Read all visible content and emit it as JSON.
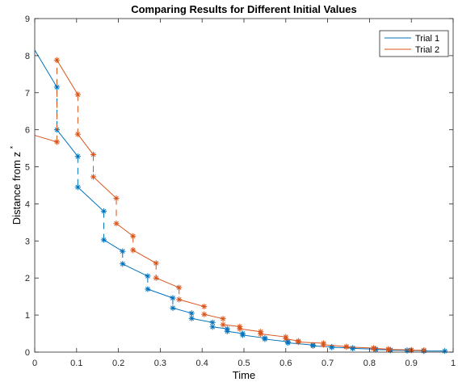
{
  "chart_data": {
    "type": "line",
    "title": "Comparing Results for Different Initial Values",
    "xlabel": "Time",
    "ylabel": "Distance from z",
    "ylabel_superscript": "*",
    "xlim": [
      0,
      1
    ],
    "ylim": [
      0,
      9
    ],
    "xticks": [
      0,
      0.1,
      0.2,
      0.3,
      0.4,
      0.5,
      0.6,
      0.7,
      0.8,
      0.9,
      1
    ],
    "xtick_labels": [
      "0",
      "0.1",
      "0.2",
      "0.3",
      "0.4",
      "0.5",
      "0.6",
      "0.7",
      "0.8",
      "0.9",
      "1"
    ],
    "yticks": [
      0,
      1,
      2,
      3,
      4,
      5,
      6,
      7,
      8,
      9
    ],
    "ytick_labels": [
      "0",
      "1",
      "2",
      "3",
      "4",
      "5",
      "6",
      "7",
      "8",
      "9"
    ],
    "grid": false,
    "legend_position": "top-right",
    "series": [
      {
        "name": "Trial 1",
        "color": "#0072BD",
        "segments": [
          [
            [
              0,
              8.15
            ],
            [
              0.053,
              7.15
            ]
          ],
          [
            [
              0.053,
              6.0
            ],
            [
              0.103,
              5.28
            ]
          ],
          [
            [
              0.103,
              4.45
            ],
            [
              0.165,
              3.8
            ]
          ],
          [
            [
              0.165,
              3.03
            ],
            [
              0.21,
              2.72
            ]
          ],
          [
            [
              0.21,
              2.38
            ],
            [
              0.27,
              2.05
            ]
          ],
          [
            [
              0.27,
              1.7
            ],
            [
              0.33,
              1.46
            ]
          ],
          [
            [
              0.33,
              1.19
            ],
            [
              0.375,
              1.05
            ]
          ],
          [
            [
              0.375,
              0.91
            ],
            [
              0.425,
              0.8
            ]
          ],
          [
            [
              0.425,
              0.68
            ],
            [
              0.46,
              0.63
            ]
          ],
          [
            [
              0.46,
              0.56
            ],
            [
              0.497,
              0.5
            ]
          ],
          [
            [
              0.497,
              0.46
            ],
            [
              0.55,
              0.38
            ]
          ],
          [
            [
              0.55,
              0.35
            ],
            [
              0.605,
              0.28
            ]
          ],
          [
            [
              0.605,
              0.25
            ],
            [
              0.665,
              0.19
            ]
          ],
          [
            [
              0.665,
              0.17
            ],
            [
              0.71,
              0.14
            ]
          ],
          [
            [
              0.71,
              0.13
            ],
            [
              0.76,
              0.11
            ]
          ],
          [
            [
              0.76,
              0.1
            ],
            [
              0.815,
              0.08
            ]
          ],
          [
            [
              0.815,
              0.07
            ],
            [
              0.85,
              0.06
            ]
          ],
          [
            [
              0.85,
              0.05
            ],
            [
              0.89,
              0.05
            ]
          ],
          [
            [
              0.89,
              0.04
            ],
            [
              0.93,
              0.04
            ]
          ],
          [
            [
              0.93,
              0.03
            ],
            [
              0.98,
              0.03
            ]
          ]
        ],
        "gaps": [
          [
            [
              0.053,
              7.15
            ],
            [
              0.053,
              6.0
            ]
          ],
          [
            [
              0.103,
              5.28
            ],
            [
              0.103,
              4.45
            ]
          ],
          [
            [
              0.165,
              3.8
            ],
            [
              0.165,
              3.03
            ]
          ],
          [
            [
              0.21,
              2.72
            ],
            [
              0.21,
              2.38
            ]
          ],
          [
            [
              0.27,
              2.05
            ],
            [
              0.27,
              1.7
            ]
          ],
          [
            [
              0.33,
              1.46
            ],
            [
              0.33,
              1.19
            ]
          ],
          [
            [
              0.375,
              1.05
            ],
            [
              0.375,
              0.91
            ]
          ]
        ],
        "markers": [
          [
            0.053,
            7.15
          ],
          [
            0.053,
            6.0
          ],
          [
            0.103,
            5.28
          ],
          [
            0.103,
            4.45
          ],
          [
            0.165,
            3.8
          ],
          [
            0.165,
            3.03
          ],
          [
            0.21,
            2.72
          ],
          [
            0.21,
            2.38
          ],
          [
            0.27,
            2.05
          ],
          [
            0.27,
            1.7
          ],
          [
            0.33,
            1.46
          ],
          [
            0.33,
            1.19
          ],
          [
            0.375,
            1.05
          ],
          [
            0.375,
            0.91
          ],
          [
            0.425,
            0.8
          ],
          [
            0.425,
            0.68
          ],
          [
            0.46,
            0.63
          ],
          [
            0.46,
            0.56
          ],
          [
            0.497,
            0.5
          ],
          [
            0.497,
            0.46
          ],
          [
            0.55,
            0.38
          ],
          [
            0.55,
            0.35
          ],
          [
            0.605,
            0.28
          ],
          [
            0.605,
            0.25
          ],
          [
            0.665,
            0.19
          ],
          [
            0.665,
            0.17
          ],
          [
            0.71,
            0.14
          ],
          [
            0.71,
            0.13
          ],
          [
            0.76,
            0.11
          ],
          [
            0.76,
            0.1
          ],
          [
            0.815,
            0.08
          ],
          [
            0.815,
            0.07
          ],
          [
            0.85,
            0.06
          ],
          [
            0.85,
            0.05
          ],
          [
            0.89,
            0.05
          ],
          [
            0.89,
            0.04
          ],
          [
            0.93,
            0.04
          ],
          [
            0.93,
            0.03
          ],
          [
            0.98,
            0.03
          ]
        ]
      },
      {
        "name": "Trial 2",
        "color": "#D95319",
        "segments": [
          [
            [
              0,
              5.85
            ],
            [
              0.053,
              5.67
            ]
          ],
          [
            [
              0.053,
              7.88
            ],
            [
              0.103,
              6.95
            ]
          ],
          [
            [
              0.103,
              5.88
            ],
            [
              0.14,
              5.33
            ]
          ],
          [
            [
              0.14,
              4.73
            ],
            [
              0.195,
              4.15
            ]
          ],
          [
            [
              0.195,
              3.47
            ],
            [
              0.235,
              3.13
            ]
          ],
          [
            [
              0.235,
              2.75
            ],
            [
              0.29,
              2.4
            ]
          ],
          [
            [
              0.29,
              2.0
            ],
            [
              0.345,
              1.74
            ]
          ],
          [
            [
              0.345,
              1.42
            ],
            [
              0.405,
              1.23
            ]
          ],
          [
            [
              0.405,
              1.02
            ],
            [
              0.45,
              0.9
            ]
          ],
          [
            [
              0.45,
              0.74
            ],
            [
              0.49,
              0.69
            ]
          ],
          [
            [
              0.49,
              0.63
            ],
            [
              0.54,
              0.55
            ]
          ],
          [
            [
              0.54,
              0.49
            ],
            [
              0.6,
              0.41
            ]
          ],
          [
            [
              0.6,
              0.36
            ],
            [
              0.63,
              0.3
            ]
          ],
          [
            [
              0.63,
              0.27
            ],
            [
              0.69,
              0.24
            ]
          ],
          [
            [
              0.69,
              0.2
            ],
            [
              0.745,
              0.15
            ]
          ],
          [
            [
              0.745,
              0.14
            ],
            [
              0.81,
              0.11
            ]
          ],
          [
            [
              0.81,
              0.1
            ],
            [
              0.845,
              0.08
            ]
          ],
          [
            [
              0.845,
              0.07
            ],
            [
              0.9,
              0.06
            ]
          ],
          [
            [
              0.9,
              0.05
            ],
            [
              0.93,
              0.05
            ]
          ]
        ],
        "gaps": [
          [
            [
              0.053,
              5.67
            ],
            [
              0.053,
              7.88
            ]
          ],
          [
            [
              0.103,
              6.95
            ],
            [
              0.103,
              5.88
            ]
          ],
          [
            [
              0.14,
              5.33
            ],
            [
              0.14,
              4.73
            ]
          ],
          [
            [
              0.195,
              4.15
            ],
            [
              0.195,
              3.47
            ]
          ],
          [
            [
              0.235,
              3.13
            ],
            [
              0.235,
              2.75
            ]
          ],
          [
            [
              0.29,
              2.4
            ],
            [
              0.29,
              2.0
            ]
          ],
          [
            [
              0.345,
              1.74
            ],
            [
              0.345,
              1.42
            ]
          ]
        ],
        "markers": [
          [
            0.053,
            5.67
          ],
          [
            0.053,
            7.88
          ],
          [
            0.103,
            6.95
          ],
          [
            0.103,
            5.88
          ],
          [
            0.14,
            5.33
          ],
          [
            0.14,
            4.73
          ],
          [
            0.195,
            4.15
          ],
          [
            0.195,
            3.47
          ],
          [
            0.235,
            3.13
          ],
          [
            0.235,
            2.75
          ],
          [
            0.29,
            2.4
          ],
          [
            0.29,
            2.0
          ],
          [
            0.345,
            1.74
          ],
          [
            0.345,
            1.42
          ],
          [
            0.405,
            1.23
          ],
          [
            0.405,
            1.02
          ],
          [
            0.45,
            0.9
          ],
          [
            0.45,
            0.74
          ],
          [
            0.49,
            0.69
          ],
          [
            0.49,
            0.63
          ],
          [
            0.54,
            0.55
          ],
          [
            0.54,
            0.49
          ],
          [
            0.6,
            0.41
          ],
          [
            0.6,
            0.36
          ],
          [
            0.63,
            0.3
          ],
          [
            0.63,
            0.27
          ],
          [
            0.69,
            0.24
          ],
          [
            0.69,
            0.2
          ],
          [
            0.745,
            0.15
          ],
          [
            0.745,
            0.14
          ],
          [
            0.81,
            0.11
          ],
          [
            0.81,
            0.1
          ],
          [
            0.845,
            0.08
          ],
          [
            0.845,
            0.07
          ],
          [
            0.9,
            0.06
          ],
          [
            0.9,
            0.05
          ],
          [
            0.93,
            0.05
          ]
        ]
      }
    ]
  }
}
